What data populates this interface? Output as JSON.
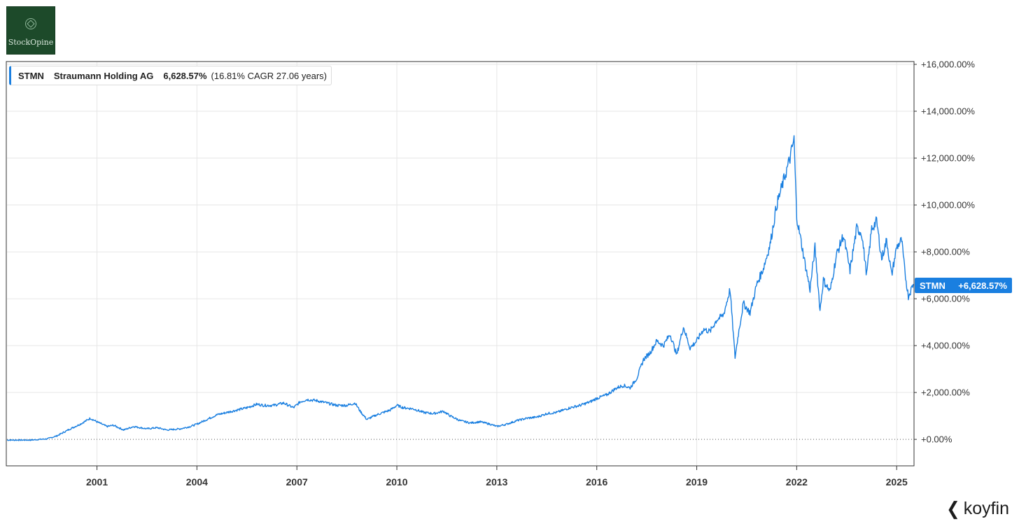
{
  "brand": {
    "logo_text": "StockOpine",
    "watermark": "koyfin",
    "watermark_icon": "koyfin-chevron-icon"
  },
  "colors": {
    "line": "#1a7fe0",
    "grid": "#e6e6e6",
    "axis": "#333333",
    "badge": "#1a7fe0"
  },
  "legend": {
    "ticker": "STMN",
    "name": "Straumann Holding AG",
    "return": "6,628.57%",
    "cagr": "(16.81% CAGR 27.06 years)"
  },
  "badge": {
    "ticker": "STMN",
    "value": "+6,628.57%"
  },
  "chart_data": {
    "type": "line",
    "xlim": [
      1998.3,
      2025.5
    ],
    "ylim": [
      -1100,
      16000
    ],
    "x_ticks": [
      {
        "x": 2001,
        "label": "2001"
      },
      {
        "x": 2004,
        "label": "2004"
      },
      {
        "x": 2007,
        "label": "2007"
      },
      {
        "x": 2010,
        "label": "2010"
      },
      {
        "x": 2013,
        "label": "2013"
      },
      {
        "x": 2016,
        "label": "2016"
      },
      {
        "x": 2019,
        "label": "2019"
      },
      {
        "x": 2022,
        "label": "2022"
      },
      {
        "x": 2025,
        "label": "2025"
      }
    ],
    "y_ticks": [
      {
        "y": 0,
        "label": "+0.00%"
      },
      {
        "y": 2000,
        "label": "+2,000.00%"
      },
      {
        "y": 4000,
        "label": "+4,000.00%"
      },
      {
        "y": 6000,
        "label": "+6,000.00%"
      },
      {
        "y": 8000,
        "label": "+8,000.00%"
      },
      {
        "y": 10000,
        "label": "+10,000.00%"
      },
      {
        "y": 12000,
        "label": "+12,000.00%"
      },
      {
        "y": 14000,
        "label": "+14,000.00%"
      },
      {
        "y": 16000,
        "label": "+16,000.00%"
      }
    ],
    "zero_line": "dotted",
    "grid": true,
    "legend_position": "top-left",
    "series": [
      {
        "ticker": "STMN",
        "x": [
          1998.3,
          1999.0,
          1999.5,
          1999.8,
          2000.2,
          2000.5,
          2000.8,
          2001.0,
          2001.3,
          2001.5,
          2001.8,
          2002.1,
          2002.5,
          2002.8,
          2003.1,
          2003.5,
          2003.8,
          2004.0,
          2004.3,
          2004.6,
          2004.9,
          2005.2,
          2005.5,
          2005.8,
          2006.0,
          2006.3,
          2006.6,
          2006.9,
          2007.1,
          2007.3,
          2007.6,
          2007.9,
          2008.2,
          2008.5,
          2008.75,
          2008.9,
          2009.1,
          2009.4,
          2009.8,
          2010.0,
          2010.2,
          2010.5,
          2010.8,
          2011.1,
          2011.4,
          2011.6,
          2011.9,
          2012.2,
          2012.5,
          2012.8,
          2013.0,
          2013.3,
          2013.6,
          2013.9,
          2014.2,
          2014.5,
          2014.8,
          2015.0,
          2015.2,
          2015.5,
          2015.8,
          2016.0,
          2016.3,
          2016.6,
          2016.8,
          2017.0,
          2017.2,
          2017.4,
          2017.6,
          2017.8,
          2018.0,
          2018.2,
          2018.4,
          2018.6,
          2018.8,
          2019.0,
          2019.2,
          2019.4,
          2019.6,
          2019.8,
          2020.0,
          2020.15,
          2020.25,
          2020.4,
          2020.6,
          2020.8,
          2021.0,
          2021.2,
          2021.4,
          2021.6,
          2021.8,
          2021.92,
          2022.0,
          2022.1,
          2022.25,
          2022.4,
          2022.55,
          2022.7,
          2022.8,
          2023.0,
          2023.2,
          2023.4,
          2023.6,
          2023.8,
          2023.95,
          2024.1,
          2024.25,
          2024.4,
          2024.55,
          2024.7,
          2024.85,
          2025.0,
          2025.15,
          2025.25,
          2025.35,
          2025.5
        ],
        "y": [
          -30,
          -30,
          20,
          150,
          450,
          650,
          900,
          750,
          550,
          600,
          400,
          550,
          450,
          500,
          400,
          450,
          550,
          650,
          850,
          1050,
          1150,
          1250,
          1350,
          1500,
          1450,
          1450,
          1550,
          1350,
          1600,
          1700,
          1650,
          1550,
          1450,
          1450,
          1550,
          1200,
          850,
          1050,
          1250,
          1450,
          1350,
          1300,
          1150,
          1100,
          1200,
          1000,
          800,
          700,
          750,
          650,
          550,
          650,
          800,
          900,
          950,
          1100,
          1150,
          1250,
          1350,
          1450,
          1600,
          1750,
          1900,
          2200,
          2300,
          2200,
          2600,
          3400,
          3700,
          4200,
          4000,
          4500,
          3600,
          4800,
          3900,
          4200,
          4700,
          4600,
          5100,
          5300,
          6400,
          3500,
          4500,
          5800,
          5400,
          6600,
          7300,
          8300,
          10000,
          11000,
          12000,
          12800,
          9500,
          8700,
          7500,
          6400,
          8200,
          5500,
          6800,
          6300,
          7900,
          8700,
          7200,
          9000,
          8800,
          7000,
          9000,
          9300,
          7700,
          8500,
          7000,
          8200,
          8500,
          7100,
          6100,
          6629
        ]
      }
    ]
  }
}
